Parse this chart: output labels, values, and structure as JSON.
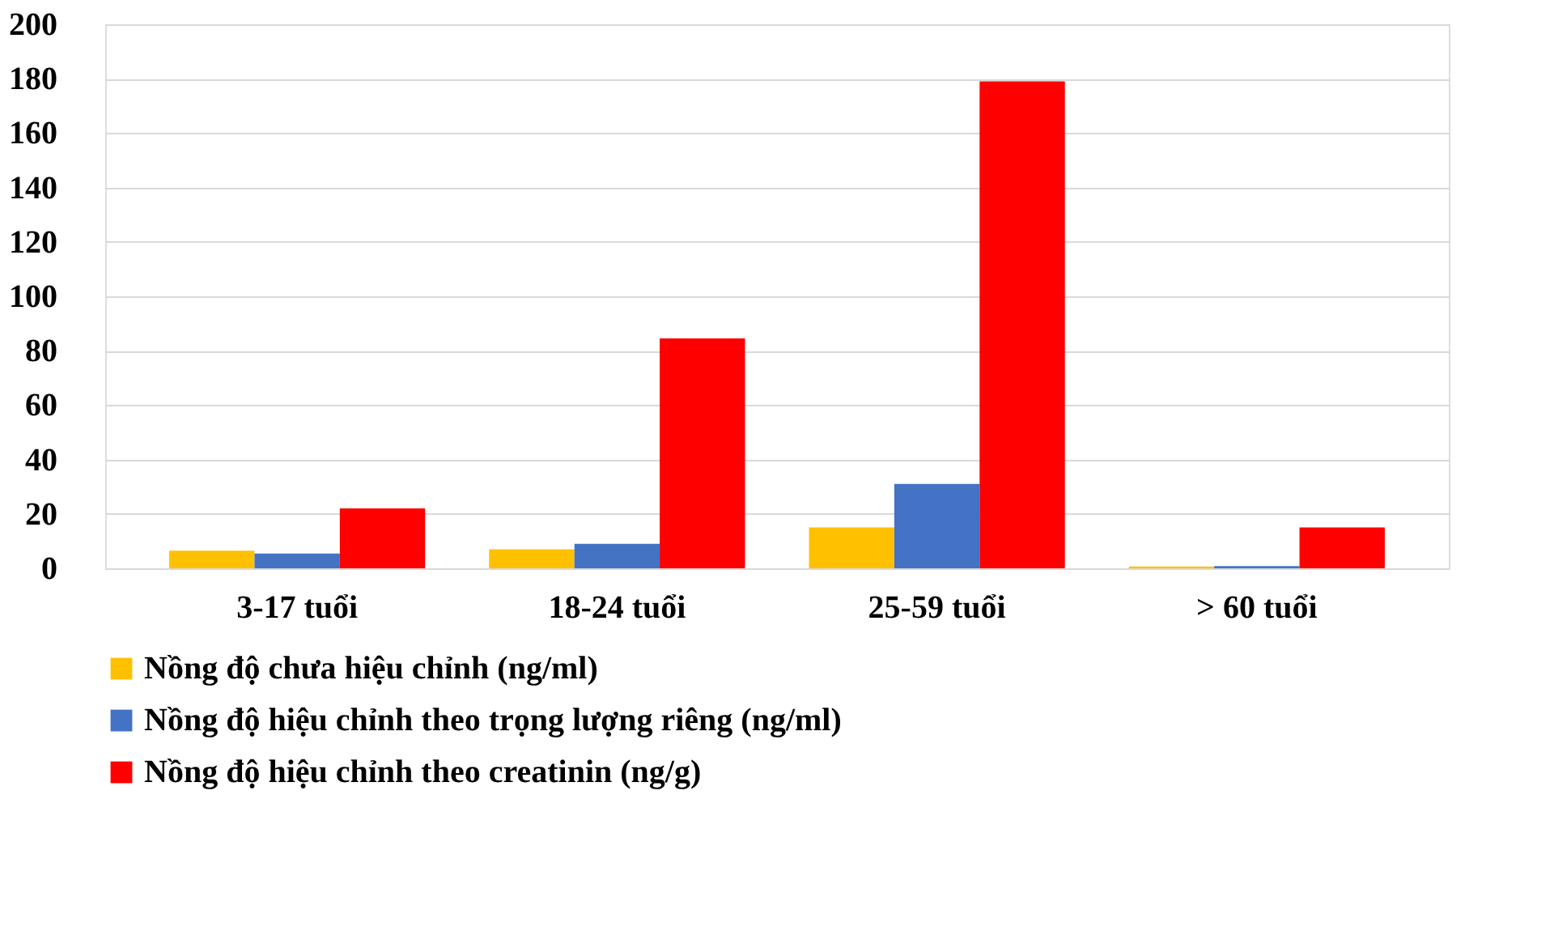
{
  "chart_data": {
    "type": "bar",
    "categories": [
      "3-17 tuổi",
      "18-24 tuổi",
      "25-59 tuổi",
      "> 60 tuổi"
    ],
    "series": [
      {
        "name": "Nồng độ chưa hiệu chỉnh (ng/ml)",
        "color": "#ffc000",
        "values": [
          6.5,
          7,
          15,
          0.7
        ]
      },
      {
        "name": "Nồng độ hiệu chỉnh theo trọng lượng riêng (ng/ml)",
        "color": "#4472c4",
        "values": [
          5.4,
          9,
          31,
          0.8
        ]
      },
      {
        "name": "Nồng độ hiệu chỉnh theo creatinin (ng/g)",
        "color": "#ff0000",
        "values": [
          22,
          84.5,
          179,
          15
        ]
      }
    ],
    "ylim": [
      0,
      200
    ],
    "yticks": [
      0,
      20,
      40,
      60,
      80,
      100,
      120,
      140,
      160,
      180,
      200
    ],
    "grid": "y",
    "legend": "bottom"
  }
}
